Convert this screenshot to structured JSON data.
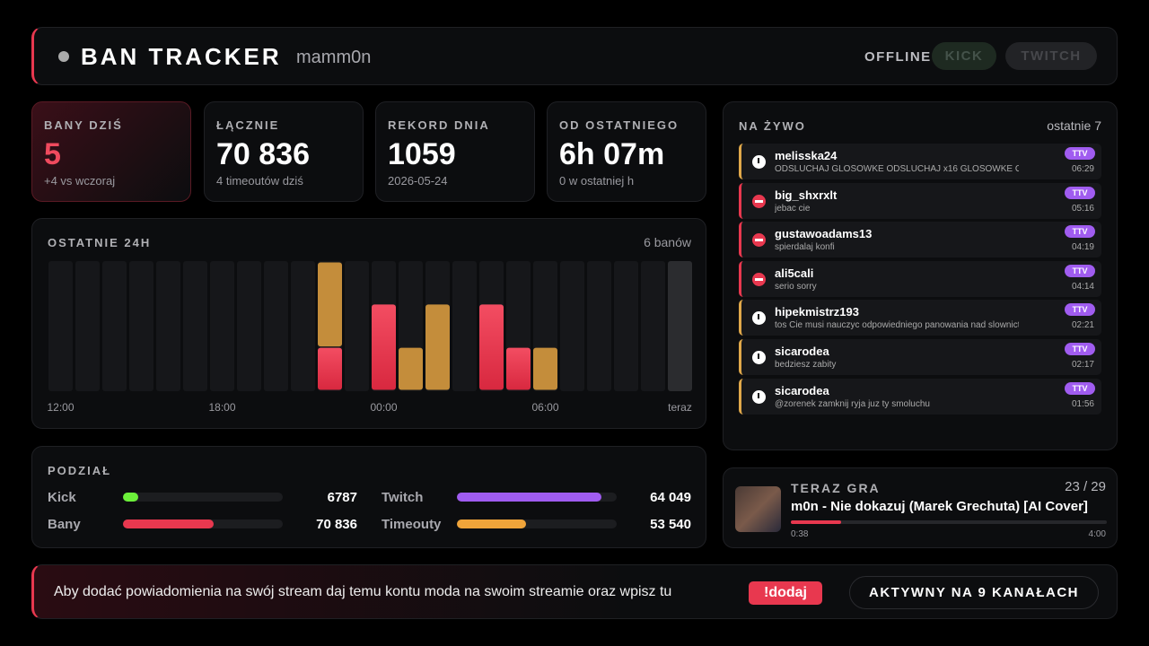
{
  "header": {
    "title": "BAN TRACKER",
    "user": "mamm0n",
    "status": "OFFLINE",
    "buttons": [
      "KICK",
      "TWITCH"
    ]
  },
  "stats": [
    {
      "label": "BANY DZIŚ",
      "value": "5",
      "note": "+4 vs wczoraj"
    },
    {
      "label": "ŁĄCZNIE",
      "value": "70 836",
      "note": "4 timeoutów dziś"
    },
    {
      "label": "REKORD DNIA",
      "value": "1059",
      "note": "2026-05-24"
    },
    {
      "label": "OD OSTATNIEGO",
      "value": "6h 07m",
      "note": "0 w ostatniej h"
    }
  ],
  "chart_data": {
    "type": "bar",
    "stacked": true,
    "title": "OSTATNIE 24H",
    "summary": "6 banów",
    "categories": [
      "12:00",
      null,
      null,
      null,
      null,
      null,
      "18:00",
      null,
      null,
      null,
      null,
      null,
      "00:00",
      null,
      null,
      null,
      null,
      null,
      "06:00",
      null,
      null,
      null,
      null,
      "teraz"
    ],
    "series": [
      {
        "color": "#e8384f",
        "values": [
          0,
          0,
          0,
          0,
          0,
          0,
          0,
          0,
          0,
          0,
          1,
          0,
          2,
          0,
          0,
          0,
          2,
          1,
          0,
          0,
          0,
          0,
          0,
          0
        ]
      },
      {
        "color": "#c48d3b",
        "values": [
          0,
          0,
          0,
          0,
          0,
          0,
          0,
          0,
          0,
          0,
          2,
          0,
          0,
          1,
          2,
          0,
          0,
          0,
          1,
          0,
          0,
          0,
          0,
          0
        ]
      }
    ]
  },
  "split": {
    "title": "PODZIAŁ",
    "rows": [
      {
        "label": "Kick",
        "value": 6787,
        "color": "#6cf03a"
      },
      {
        "label": "Twitch",
        "value": 64049,
        "value_label": "64 049",
        "color": "#a05cf0"
      },
      {
        "label": "Bany",
        "value": 70836,
        "value_label": "70 836",
        "color": "#e8384f"
      },
      {
        "label": "Timeouty",
        "value": 53540,
        "value_label": "53 540",
        "color": "#f0a43a"
      }
    ]
  },
  "feed": {
    "title": "NA ŻYWO",
    "summary": "ostatnie 7",
    "items": [
      {
        "user": "melisska24",
        "message": "ODSLUCHAJ GLOSOWKE ODSLUCHAJ x16 GLOSOWKE O",
        "badge": "TTV",
        "time": "06:29",
        "kind": "timeout"
      },
      {
        "user": "big_shxrxlt",
        "message": "jebac cie",
        "badge": "TTV",
        "time": "05:16",
        "kind": "ban"
      },
      {
        "user": "gustawoadams13",
        "message": "spierdalaj konfi",
        "badge": "TTV",
        "time": "04:19",
        "kind": "ban"
      },
      {
        "user": "ali5cali",
        "message": "serio sorry",
        "badge": "TTV",
        "time": "04:14",
        "kind": "ban"
      },
      {
        "user": "hipekmistrz193",
        "message": "tos Cie musi nauczyc odpowiedniego panowania nad slownictwem",
        "badge": "TTV",
        "time": "02:21",
        "kind": "timeout"
      },
      {
        "user": "sicarodea",
        "message": "bedziesz zabity",
        "badge": "TTV",
        "time": "02:17",
        "kind": "timeout"
      },
      {
        "user": "sicarodea",
        "message": "@zorenek zamknij ryja juz ty smoluchu",
        "badge": "TTV",
        "time": "01:56",
        "kind": "timeout"
      }
    ]
  },
  "player": {
    "label": "TERAZ GRA",
    "position": "23 / 29",
    "song": "m0n - Nie dokazuj (Marek Grechuta) [AI Cover]",
    "elapsed": "0:38",
    "duration": "4:00"
  },
  "footer": {
    "text": "Aby dodać powiadomienia na swój stream daj temu kontu moda na swoim streamie oraz wpisz tu",
    "command": "!dodaj",
    "status": "AKTYWNY NA 9 KANAŁACH"
  }
}
